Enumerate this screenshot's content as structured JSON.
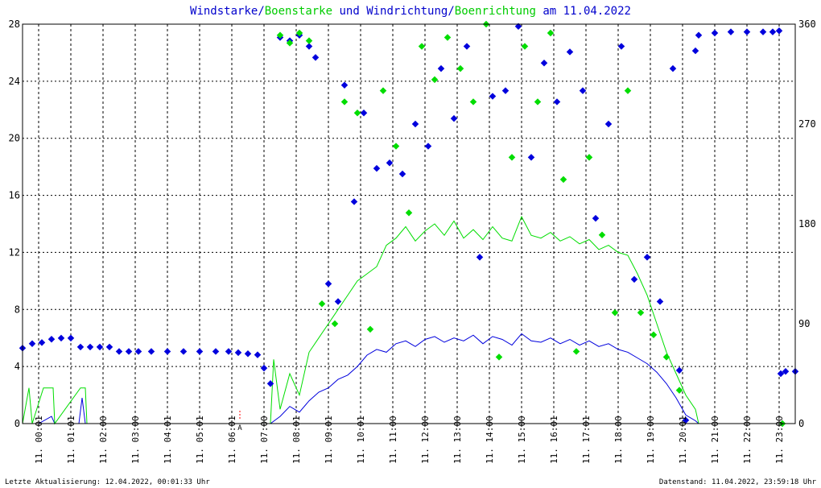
{
  "title": {
    "part1": "Windstarke",
    "sep1": "/",
    "part2": "Boenstarke",
    "mid": " und ",
    "part3": "Windrichtung",
    "sep2": "/",
    "part4": "Boenrichtung",
    "suffix": " am 11.04.2022"
  },
  "footer": {
    "left": "Letzte Aktualisierung: 12.04.2022, 00:01:33 Uhr",
    "right": "Datenstand: 11.04.2022, 23:59:18 Uhr"
  },
  "marker": {
    "label": "A",
    "hour": 6.75
  },
  "colors": {
    "wind": "#0000dd",
    "gust": "#00dd00",
    "grid": "#000000",
    "marker": "#ff0000"
  },
  "chart_data": {
    "type": "line",
    "x_range_hours": [
      0,
      24
    ],
    "x_tick_labels": [
      "11. 00:01",
      "11. 01:01",
      "11. 02:00",
      "11. 03:00",
      "11. 04:01",
      "11. 05:01",
      "11. 06:01",
      "11. 07:00",
      "11. 08:01",
      "11. 09:01",
      "11. 10:01",
      "11. 11:00",
      "11. 12:00",
      "11. 13:00",
      "11. 14:00",
      "11. 15:00",
      "11. 16:01",
      "11. 17:01",
      "11. 18:00",
      "11. 19:00",
      "11. 20:01",
      "11. 21:00",
      "11. 22:00",
      "11. 23:00"
    ],
    "y_left": {
      "min": 0,
      "max": 28,
      "ticks": [
        0,
        4,
        8,
        12,
        16,
        20,
        24,
        28
      ]
    },
    "y_right": {
      "min": 0,
      "max": 360,
      "ticks": [
        0,
        90,
        180,
        270,
        360
      ]
    },
    "grid": true,
    "series": [
      {
        "type": "line",
        "axis": "left",
        "color": "#0000dd",
        "points": [
          [
            0.0,
            0
          ],
          [
            0.5,
            0
          ],
          [
            0.9,
            0.5
          ],
          [
            1.0,
            0
          ],
          [
            1.75,
            0
          ],
          [
            1.85,
            1.8
          ],
          [
            1.95,
            0
          ],
          [
            7.7,
            0
          ],
          [
            8.0,
            0.5
          ],
          [
            8.3,
            1.2
          ],
          [
            8.6,
            0.8
          ],
          [
            8.9,
            1.6
          ],
          [
            9.2,
            2.2
          ],
          [
            9.5,
            2.5
          ],
          [
            9.8,
            3.1
          ],
          [
            10.1,
            3.4
          ],
          [
            10.4,
            4.0
          ],
          [
            10.7,
            4.8
          ],
          [
            11.0,
            5.2
          ],
          [
            11.3,
            5.0
          ],
          [
            11.6,
            5.6
          ],
          [
            11.9,
            5.8
          ],
          [
            12.2,
            5.4
          ],
          [
            12.5,
            5.9
          ],
          [
            12.8,
            6.1
          ],
          [
            13.1,
            5.7
          ],
          [
            13.4,
            6.0
          ],
          [
            13.7,
            5.8
          ],
          [
            14.0,
            6.2
          ],
          [
            14.3,
            5.6
          ],
          [
            14.6,
            6.1
          ],
          [
            14.9,
            5.9
          ],
          [
            15.2,
            5.5
          ],
          [
            15.5,
            6.3
          ],
          [
            15.8,
            5.8
          ],
          [
            16.1,
            5.7
          ],
          [
            16.4,
            6.0
          ],
          [
            16.7,
            5.6
          ],
          [
            17.0,
            5.9
          ],
          [
            17.3,
            5.5
          ],
          [
            17.6,
            5.8
          ],
          [
            17.9,
            5.4
          ],
          [
            18.2,
            5.6
          ],
          [
            18.5,
            5.2
          ],
          [
            18.8,
            5.0
          ],
          [
            19.1,
            4.6
          ],
          [
            19.4,
            4.2
          ],
          [
            19.7,
            3.6
          ],
          [
            20.0,
            2.8
          ],
          [
            20.3,
            1.8
          ],
          [
            20.6,
            0.6
          ],
          [
            20.9,
            0.2
          ],
          [
            21.0,
            0
          ],
          [
            24.0,
            0
          ]
        ]
      },
      {
        "type": "line",
        "axis": "left",
        "color": "#00dd00",
        "points": [
          [
            0.0,
            0
          ],
          [
            0.2,
            2.5
          ],
          [
            0.3,
            0
          ],
          [
            0.65,
            2.5
          ],
          [
            0.95,
            2.5
          ],
          [
            1.0,
            0
          ],
          [
            1.8,
            2.5
          ],
          [
            1.95,
            2.5
          ],
          [
            2.0,
            0
          ],
          [
            7.7,
            0
          ],
          [
            7.8,
            4.5
          ],
          [
            8.0,
            1.0
          ],
          [
            8.3,
            3.5
          ],
          [
            8.6,
            2.0
          ],
          [
            8.9,
            5.0
          ],
          [
            9.2,
            6.0
          ],
          [
            9.5,
            7.0
          ],
          [
            9.8,
            8.0
          ],
          [
            10.1,
            9.0
          ],
          [
            10.4,
            10.0
          ],
          [
            10.7,
            10.5
          ],
          [
            11.0,
            11.0
          ],
          [
            11.3,
            12.5
          ],
          [
            11.6,
            13.0
          ],
          [
            11.9,
            13.8
          ],
          [
            12.2,
            12.8
          ],
          [
            12.5,
            13.5
          ],
          [
            12.8,
            14.0
          ],
          [
            13.1,
            13.2
          ],
          [
            13.4,
            14.2
          ],
          [
            13.7,
            13.0
          ],
          [
            14.0,
            13.6
          ],
          [
            14.3,
            12.9
          ],
          [
            14.6,
            13.8
          ],
          [
            14.9,
            13.0
          ],
          [
            15.2,
            12.8
          ],
          [
            15.5,
            14.5
          ],
          [
            15.8,
            13.2
          ],
          [
            16.1,
            13.0
          ],
          [
            16.4,
            13.4
          ],
          [
            16.7,
            12.8
          ],
          [
            17.0,
            13.1
          ],
          [
            17.3,
            12.6
          ],
          [
            17.6,
            12.9
          ],
          [
            17.9,
            12.2
          ],
          [
            18.2,
            12.5
          ],
          [
            18.5,
            12.0
          ],
          [
            18.8,
            11.8
          ],
          [
            19.1,
            10.5
          ],
          [
            19.4,
            9.0
          ],
          [
            19.7,
            7.0
          ],
          [
            20.0,
            5.0
          ],
          [
            20.3,
            3.5
          ],
          [
            20.6,
            2.0
          ],
          [
            20.9,
            1.0
          ],
          [
            21.0,
            0
          ],
          [
            24.0,
            0
          ]
        ]
      },
      {
        "type": "scatter",
        "axis": "right",
        "color": "#0000dd",
        "points": [
          [
            0.0,
            68
          ],
          [
            0.3,
            72
          ],
          [
            0.6,
            73
          ],
          [
            0.9,
            76
          ],
          [
            1.2,
            77
          ],
          [
            1.5,
            77
          ],
          [
            1.8,
            69
          ],
          [
            2.1,
            69
          ],
          [
            2.4,
            69
          ],
          [
            2.7,
            69
          ],
          [
            3.0,
            65
          ],
          [
            3.3,
            65
          ],
          [
            3.6,
            65
          ],
          [
            4.0,
            65
          ],
          [
            4.5,
            65
          ],
          [
            5.0,
            65
          ],
          [
            5.5,
            65
          ],
          [
            6.0,
            65
          ],
          [
            6.4,
            65
          ],
          [
            6.7,
            64
          ],
          [
            7.0,
            63
          ],
          [
            7.3,
            62
          ],
          [
            7.5,
            50
          ],
          [
            7.7,
            36
          ],
          [
            8.0,
            348
          ],
          [
            8.3,
            345
          ],
          [
            8.6,
            350
          ],
          [
            8.9,
            340
          ],
          [
            9.1,
            330
          ],
          [
            9.5,
            126
          ],
          [
            9.8,
            110
          ],
          [
            10.0,
            305
          ],
          [
            10.3,
            200
          ],
          [
            10.6,
            280
          ],
          [
            11.0,
            230
          ],
          [
            11.4,
            235
          ],
          [
            11.8,
            225
          ],
          [
            12.2,
            270
          ],
          [
            12.6,
            250
          ],
          [
            13.0,
            320
          ],
          [
            13.4,
            275
          ],
          [
            13.8,
            340
          ],
          [
            14.2,
            150
          ],
          [
            14.6,
            295
          ],
          [
            15.0,
            300
          ],
          [
            15.4,
            358
          ],
          [
            15.8,
            240
          ],
          [
            16.2,
            325
          ],
          [
            16.6,
            290
          ],
          [
            17.0,
            335
          ],
          [
            17.4,
            300
          ],
          [
            17.8,
            185
          ],
          [
            18.2,
            270
          ],
          [
            18.6,
            340
          ],
          [
            19.0,
            130
          ],
          [
            19.4,
            150
          ],
          [
            19.8,
            110
          ],
          [
            20.2,
            320
          ],
          [
            20.4,
            48
          ],
          [
            20.6,
            3
          ],
          [
            20.9,
            336
          ],
          [
            21.0,
            350
          ],
          [
            21.5,
            352
          ],
          [
            22.0,
            353
          ],
          [
            22.5,
            353
          ],
          [
            23.0,
            353
          ],
          [
            23.3,
            353
          ],
          [
            23.5,
            354
          ],
          [
            23.55,
            45
          ],
          [
            23.7,
            47
          ],
          [
            24.0,
            47
          ]
        ]
      },
      {
        "type": "scatter",
        "axis": "right",
        "color": "#00dd00",
        "points": [
          [
            8.0,
            350
          ],
          [
            8.3,
            343
          ],
          [
            8.6,
            352
          ],
          [
            8.9,
            345
          ],
          [
            9.3,
            108
          ],
          [
            9.7,
            90
          ],
          [
            10.0,
            290
          ],
          [
            10.4,
            280
          ],
          [
            10.8,
            85
          ],
          [
            11.2,
            300
          ],
          [
            11.6,
            250
          ],
          [
            12.0,
            190
          ],
          [
            12.4,
            340
          ],
          [
            12.8,
            310
          ],
          [
            13.2,
            348
          ],
          [
            13.6,
            320
          ],
          [
            14.0,
            290
          ],
          [
            14.4,
            360
          ],
          [
            14.8,
            60
          ],
          [
            15.2,
            240
          ],
          [
            15.6,
            340
          ],
          [
            16.0,
            290
          ],
          [
            16.4,
            352
          ],
          [
            16.8,
            220
          ],
          [
            17.2,
            65
          ],
          [
            17.6,
            240
          ],
          [
            18.0,
            170
          ],
          [
            18.4,
            100
          ],
          [
            18.8,
            300
          ],
          [
            19.2,
            100
          ],
          [
            19.6,
            80
          ],
          [
            20.0,
            60
          ],
          [
            20.4,
            30
          ],
          [
            23.6,
            0
          ]
        ]
      }
    ]
  }
}
